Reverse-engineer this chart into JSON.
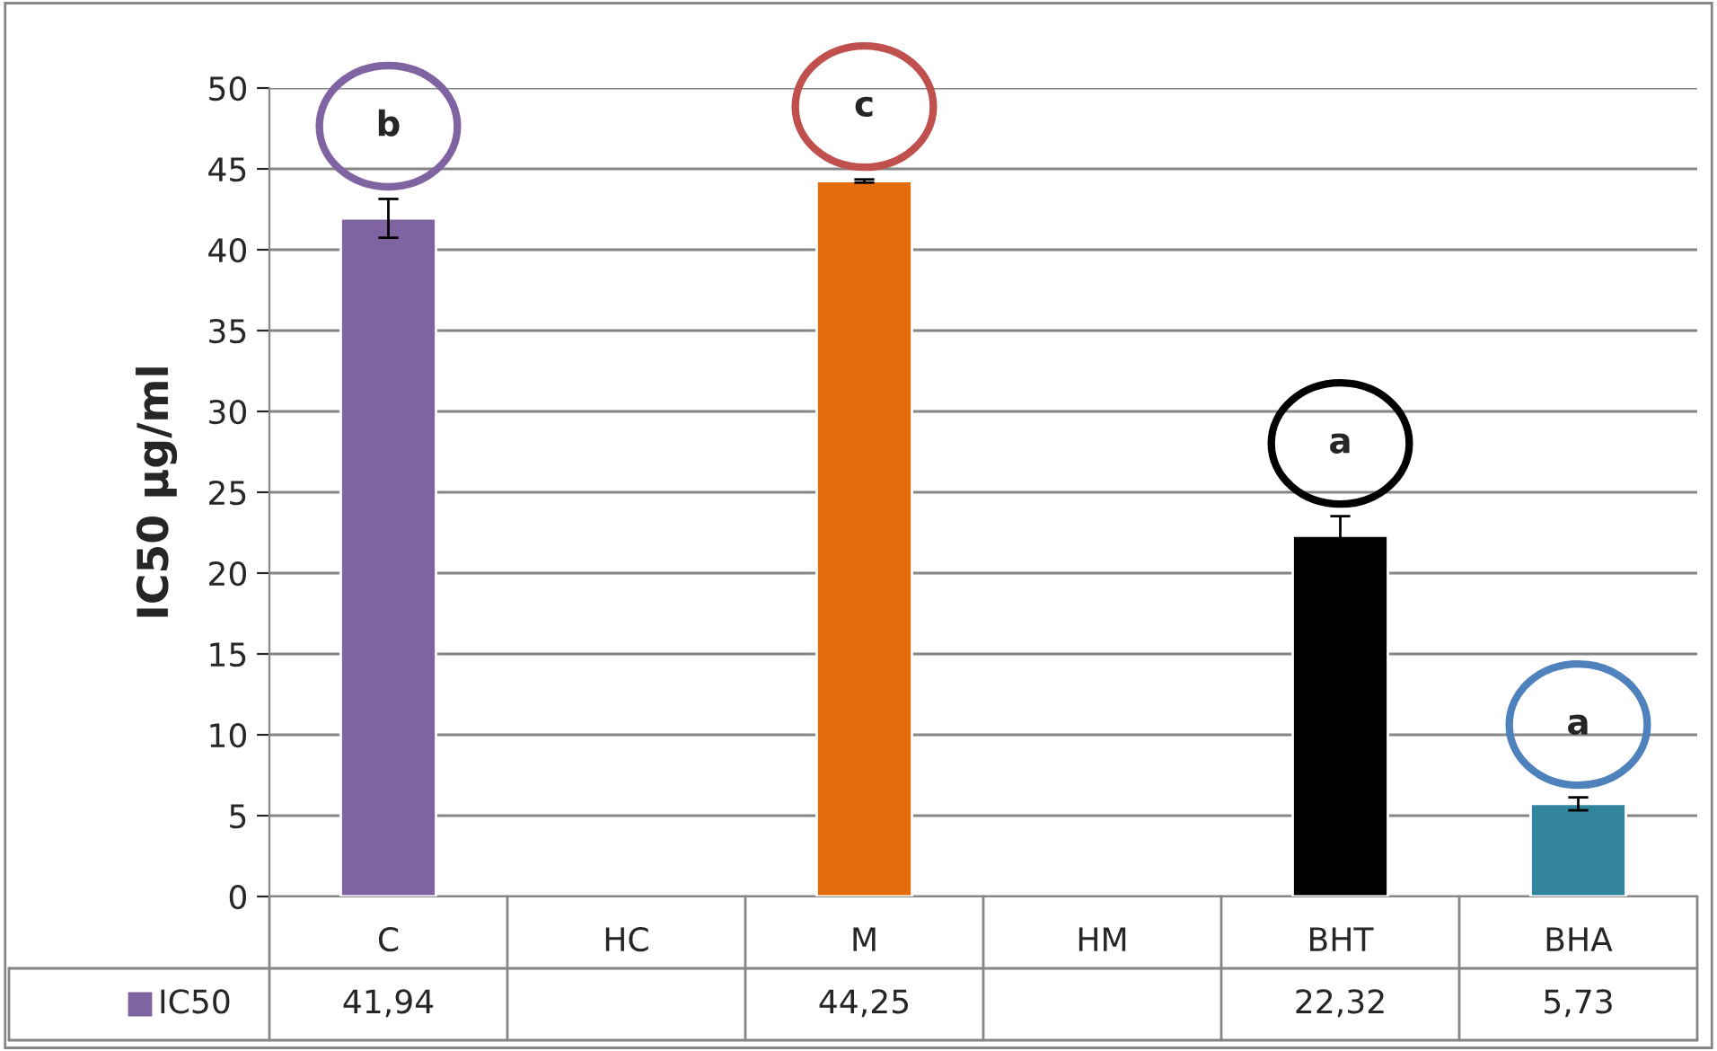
{
  "chart_data": {
    "type": "bar",
    "ylabel": "IC50 µg/ml",
    "categories": [
      "C",
      "HC",
      "M",
      "HM",
      "BHT",
      "BHA"
    ],
    "series": [
      {
        "name": "IC50",
        "color": "#8064a2",
        "colors": [
          "#8064a2",
          null,
          "#e46c0a",
          null,
          "#000000",
          "#31849b"
        ],
        "values": [
          41.94,
          null,
          44.25,
          null,
          22.32,
          5.73
        ],
        "errors": [
          1.2,
          null,
          0.1,
          null,
          1.2,
          0.4
        ],
        "value_labels": [
          "41,94",
          null,
          "44,25",
          null,
          "22,32",
          "5,73"
        ]
      }
    ],
    "annotations": [
      "b",
      "c",
      "a",
      "a"
    ],
    "ylim": [
      0,
      50
    ],
    "yticks": [
      0,
      5,
      10,
      15,
      20,
      25,
      30,
      35,
      40,
      45,
      50
    ],
    "grid": "y",
    "legend": "bottom"
  }
}
